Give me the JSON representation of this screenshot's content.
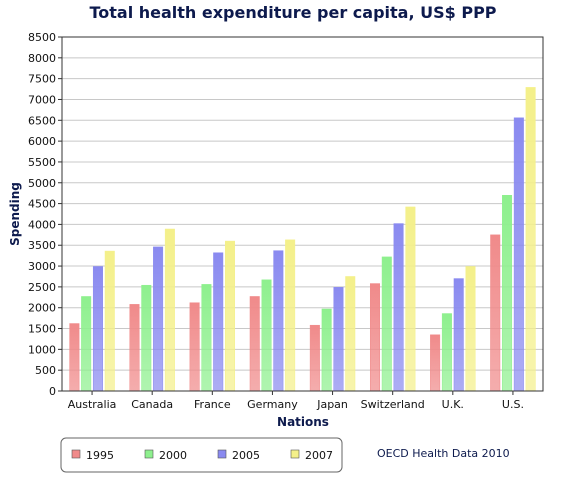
{
  "chart_data": {
    "type": "bar",
    "title": "Total health expenditure per capita, US$ PPP",
    "xlabel": "Nations",
    "ylabel": "Spending",
    "ylim": [
      0,
      8500
    ],
    "ytick_step": 500,
    "grid": true,
    "legend_position": "bottom-left",
    "categories": [
      "Australia",
      "Canada",
      "France",
      "Germany",
      "Japan",
      "Switzerland",
      "U.K.",
      "U.S."
    ],
    "series": [
      {
        "name": "1995",
        "color": "#f08a8a",
        "values": [
          1620,
          2080,
          2120,
          2270,
          1580,
          2580,
          1350,
          3750
        ]
      },
      {
        "name": "2000",
        "color": "#8ef08e",
        "values": [
          2270,
          2540,
          2560,
          2670,
          1970,
          3220,
          1860,
          4700
        ]
      },
      {
        "name": "2005",
        "color": "#8a8af0",
        "values": [
          2990,
          3460,
          3320,
          3370,
          2490,
          4020,
          2700,
          6560
        ]
      },
      {
        "name": "2007",
        "color": "#f4f08a",
        "values": [
          3360,
          3890,
          3600,
          3630,
          2750,
          4420,
          2990,
          7290
        ]
      }
    ],
    "source_note": "OECD Health Data 2010"
  }
}
